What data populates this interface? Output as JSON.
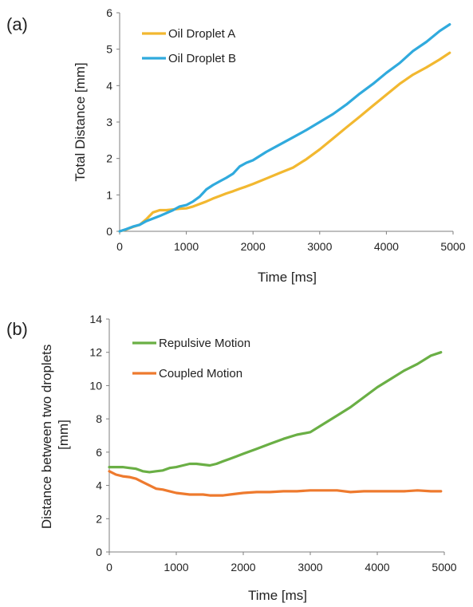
{
  "panels": [
    {
      "label": "(a)"
    },
    {
      "label": "(b)"
    }
  ],
  "chart_data": [
    {
      "type": "line",
      "title": "",
      "xlabel": "Time [ms]",
      "ylabel": "Total Distance [mm]",
      "xlim": [
        0,
        5000
      ],
      "ylim": [
        0,
        6
      ],
      "xticks": [
        0,
        1000,
        2000,
        3000,
        4000,
        5000
      ],
      "yticks": [
        0,
        1,
        2,
        3,
        4,
        5,
        6
      ],
      "grid": false,
      "legend_position": "top-left",
      "series": [
        {
          "name": "Oil Droplet A",
          "color": "#F2B830",
          "x": [
            0,
            100,
            200,
            300,
            400,
            500,
            600,
            700,
            800,
            900,
            1000,
            1100,
            1200,
            1300,
            1400,
            1500,
            1600,
            1700,
            1800,
            1900,
            2000,
            2200,
            2400,
            2600,
            2800,
            3000,
            3200,
            3400,
            3600,
            3800,
            4000,
            4200,
            4400,
            4600,
            4800,
            4950
          ],
          "y": [
            0,
            0.05,
            0.12,
            0.18,
            0.33,
            0.52,
            0.58,
            0.58,
            0.6,
            0.62,
            0.63,
            0.68,
            0.75,
            0.82,
            0.9,
            0.97,
            1.04,
            1.1,
            1.17,
            1.23,
            1.3,
            1.45,
            1.6,
            1.75,
            1.98,
            2.25,
            2.55,
            2.85,
            3.15,
            3.45,
            3.75,
            4.05,
            4.3,
            4.5,
            4.72,
            4.9
          ]
        },
        {
          "name": "Oil Droplet B",
          "color": "#30AADD",
          "x": [
            0,
            100,
            200,
            300,
            400,
            500,
            600,
            700,
            800,
            900,
            1000,
            1100,
            1200,
            1300,
            1400,
            1500,
            1600,
            1700,
            1800,
            1900,
            2000,
            2200,
            2400,
            2600,
            2800,
            3000,
            3200,
            3400,
            3600,
            3800,
            4000,
            4200,
            4400,
            4600,
            4800,
            4950
          ],
          "y": [
            0,
            0.06,
            0.13,
            0.18,
            0.28,
            0.35,
            0.42,
            0.5,
            0.58,
            0.68,
            0.72,
            0.82,
            0.95,
            1.15,
            1.27,
            1.37,
            1.47,
            1.58,
            1.78,
            1.88,
            1.95,
            2.18,
            2.38,
            2.58,
            2.78,
            3.0,
            3.22,
            3.48,
            3.78,
            4.05,
            4.35,
            4.62,
            4.95,
            5.2,
            5.5,
            5.68
          ]
        }
      ]
    },
    {
      "type": "line",
      "title": "",
      "xlabel": "Time [ms]",
      "ylabel": "Distance between two droplets [mm]",
      "ylabel_lines": [
        "Distance between two droplets",
        "[mm]"
      ],
      "xlim": [
        0,
        5000
      ],
      "ylim": [
        0,
        14
      ],
      "xticks": [
        0,
        1000,
        2000,
        3000,
        4000,
        5000
      ],
      "yticks": [
        0,
        2,
        4,
        6,
        8,
        10,
        12,
        14
      ],
      "grid": false,
      "legend_position": "top-left",
      "series": [
        {
          "name": "Repulsive Motion",
          "color": "#6AAF45",
          "x": [
            0,
            100,
            200,
            300,
            400,
            500,
            600,
            700,
            800,
            900,
            1000,
            1100,
            1200,
            1300,
            1400,
            1500,
            1600,
            1700,
            1800,
            1900,
            2000,
            2200,
            2400,
            2600,
            2800,
            3000,
            3200,
            3400,
            3600,
            3800,
            4000,
            4200,
            4400,
            4600,
            4800,
            4950
          ],
          "y": [
            5.1,
            5.1,
            5.1,
            5.05,
            5.0,
            4.85,
            4.8,
            4.85,
            4.9,
            5.05,
            5.1,
            5.2,
            5.3,
            5.3,
            5.25,
            5.2,
            5.3,
            5.45,
            5.6,
            5.75,
            5.9,
            6.2,
            6.5,
            6.8,
            7.05,
            7.2,
            7.7,
            8.2,
            8.7,
            9.3,
            9.9,
            10.4,
            10.9,
            11.3,
            11.8,
            12.0
          ]
        },
        {
          "name": "Coupled Motion",
          "color": "#EE7A2E",
          "x": [
            0,
            100,
            200,
            300,
            400,
            500,
            600,
            700,
            800,
            900,
            1000,
            1100,
            1200,
            1300,
            1400,
            1500,
            1600,
            1700,
            1800,
            1900,
            2000,
            2200,
            2400,
            2600,
            2800,
            3000,
            3200,
            3400,
            3600,
            3800,
            4000,
            4200,
            4400,
            4600,
            4800,
            4950
          ],
          "y": [
            4.85,
            4.65,
            4.55,
            4.5,
            4.4,
            4.2,
            4.0,
            3.8,
            3.75,
            3.65,
            3.55,
            3.5,
            3.45,
            3.45,
            3.45,
            3.4,
            3.4,
            3.4,
            3.45,
            3.5,
            3.55,
            3.6,
            3.6,
            3.65,
            3.65,
            3.7,
            3.7,
            3.7,
            3.6,
            3.65,
            3.65,
            3.65,
            3.65,
            3.7,
            3.65,
            3.65
          ]
        }
      ]
    }
  ]
}
